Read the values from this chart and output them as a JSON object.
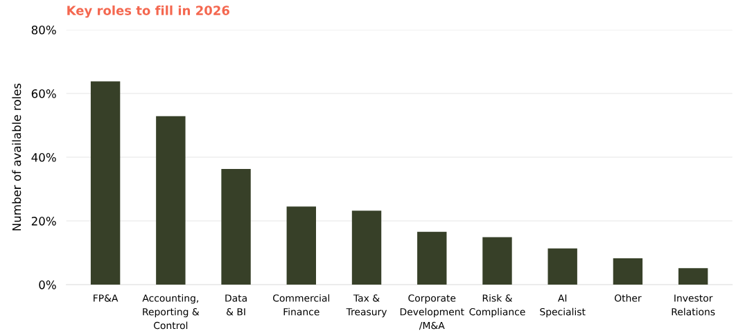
{
  "chart_data": {
    "type": "bar",
    "title": "Key roles to fill in 2026",
    "ylabel": "Number of available roles",
    "categories": [
      "FP&A",
      "Accounting,\nReporting &\nControl",
      "Data\n& BI",
      "Commercial\nFinance",
      "Tax &\nTreasury",
      "Corporate\nDevelopment\n/M&A",
      "Risk &\nCompliance",
      "AI\nSpecialist",
      "Other",
      "Investor\nRelations"
    ],
    "values": [
      63.8,
      52.9,
      36.3,
      24.5,
      23.2,
      16.6,
      14.9,
      11.4,
      8.3,
      5.2
    ],
    "color": "#374028",
    "ylim": [
      0,
      80
    ],
    "yticks": [
      {
        "value": 0,
        "label": "0%"
      },
      {
        "value": 20,
        "label": "20%"
      },
      {
        "value": 40,
        "label": "40%"
      },
      {
        "value": 60,
        "label": "60%"
      },
      {
        "value": 80,
        "label": "80%"
      }
    ],
    "grid": "y"
  }
}
